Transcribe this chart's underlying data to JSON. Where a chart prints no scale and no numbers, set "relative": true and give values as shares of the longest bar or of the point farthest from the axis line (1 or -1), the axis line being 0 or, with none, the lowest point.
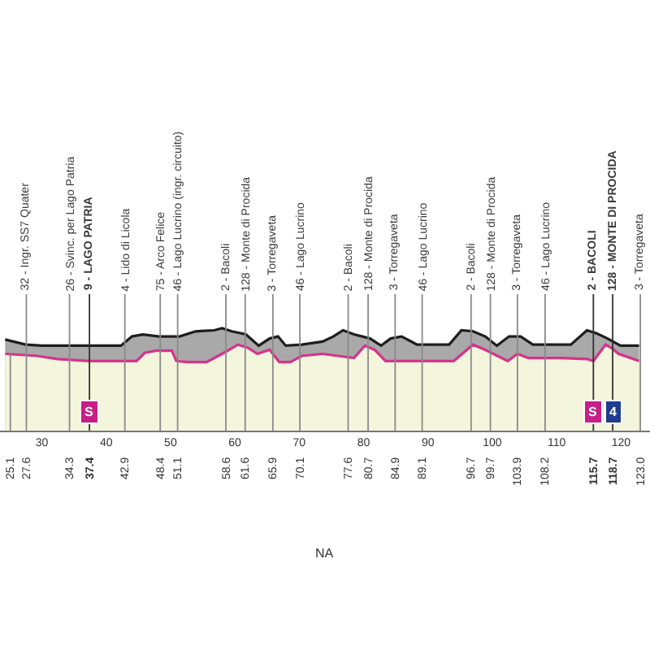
{
  "chart_data": {
    "type": "area",
    "relative": true,
    "xlim": [
      23.5,
      124.5
    ],
    "xticks": [
      30,
      40,
      50,
      60,
      70,
      80,
      90,
      100,
      110,
      120
    ],
    "tick_labels": "x",
    "x2lim": [
      23.5,
      124.5
    ],
    "x2ticks": [
      25.1,
      27.6,
      34.3,
      37.4,
      42.9,
      48.4,
      51.1,
      58.6,
      61.6,
      65.9,
      70.1,
      77.6,
      80.7,
      84.9,
      89.1,
      96.7,
      99.7,
      103.9,
      108.2,
      115.7,
      118.7,
      {
        "value": 123.0,
        "label": "123.0"
      }
    ],
    "series": [
      {
        "color": "#1e1e1e",
        "x": [
          24.3,
          27.5,
          30.0,
          34.9,
          37.4,
          42.3,
          44.0,
          45.7,
          48.2,
          51.4,
          53.9,
          56.8,
          58.0,
          59.5,
          61.7,
          63.7,
          65.4,
          66.7,
          67.9,
          70.4,
          73.6,
          75.3,
          76.8,
          78.5,
          81.0,
          82.7,
          84.2,
          85.9,
          88.3,
          93.3,
          95.2,
          97.0,
          98.9,
          100.7,
          102.6,
          104.4,
          106.3,
          112.2,
          114.7,
          116.2,
          117.9,
          119.9,
          122.8
        ],
        "values": [
          0.89,
          0.84,
          0.83,
          0.83,
          0.83,
          0.83,
          0.92,
          0.94,
          0.92,
          0.92,
          0.97,
          0.98,
          1.0,
          0.97,
          0.94,
          0.83,
          0.9,
          0.92,
          0.83,
          0.84,
          0.87,
          0.92,
          0.98,
          0.94,
          0.9,
          0.83,
          0.9,
          0.92,
          0.84,
          0.84,
          0.98,
          0.97,
          0.92,
          0.83,
          0.92,
          0.92,
          0.84,
          0.84,
          0.98,
          0.95,
          0.9,
          0.83,
          0.83
        ]
      },
      {
        "color": "#d6338a",
        "x": [
          24.3,
          29.2,
          32.4,
          37.4,
          44.7,
          46.0,
          47.7,
          50.2,
          50.9,
          52.6,
          55.6,
          58.0,
          60.5,
          62.0,
          63.5,
          65.4,
          66.9,
          68.6,
          70.4,
          73.6,
          78.5,
          80.2,
          81.7,
          83.4,
          94.0,
          97.0,
          98.9,
          102.4,
          103.9,
          105.6,
          110.5,
          114.7,
          115.7,
          117.6,
          118.7,
          119.6,
          122.8
        ],
        "values": [
          0.75,
          0.73,
          0.7,
          0.68,
          0.68,
          0.76,
          0.78,
          0.78,
          0.68,
          0.67,
          0.67,
          0.75,
          0.84,
          0.81,
          0.75,
          0.79,
          0.67,
          0.67,
          0.73,
          0.75,
          0.71,
          0.83,
          0.79,
          0.68,
          0.68,
          0.84,
          0.79,
          0.68,
          0.75,
          0.71,
          0.71,
          0.7,
          0.68,
          0.84,
          0.8,
          0.75,
          0.68
        ]
      }
    ],
    "ref_lines": [
      {
        "axis": "x",
        "value": 25.1
      },
      {
        "axis": "x",
        "value": 27.6,
        "label": "32 - Ingr. SS7 Quater"
      },
      {
        "axis": "x",
        "value": 34.3,
        "label": "26 - Svinc. per Lago Patria"
      },
      {
        "axis": "x",
        "value": 37.4,
        "label": "9 - LAGO PATRIA",
        "color": "#333333"
      },
      {
        "axis": "x",
        "value": 42.9,
        "label": "4 - Lido di Licola"
      },
      {
        "axis": "x",
        "value": 48.4,
        "label": "75 - Arco Felice"
      },
      {
        "axis": "x",
        "value": 51.1,
        "label": "46 - Lago Lucrino (ingr. circuito)"
      },
      {
        "axis": "x",
        "value": 58.6,
        "label": "2 - Bacoli"
      },
      {
        "axis": "x",
        "value": 61.6,
        "label": "128 - Monte di Procida"
      },
      {
        "axis": "x",
        "value": 65.9,
        "label": "3 - Torregaveta"
      },
      {
        "axis": "x",
        "value": 70.1,
        "label": "46 - Lago Lucrino"
      },
      {
        "axis": "x",
        "value": 77.6,
        "label": "2 - Bacoli"
      },
      {
        "axis": "x",
        "value": 80.7,
        "label": "128 - Monte di Procida"
      },
      {
        "axis": "x",
        "value": 84.9,
        "label": "3 - Torregaveta"
      },
      {
        "axis": "x",
        "value": 89.1,
        "label": "46 - Lago Lucrino"
      },
      {
        "axis": "x",
        "value": 96.7,
        "label": "2 - Bacoli"
      },
      {
        "axis": "x",
        "value": 99.7,
        "label": "128 - Monte di Procida"
      },
      {
        "axis": "x",
        "value": 103.9,
        "label": "3 - Torregaveta"
      },
      {
        "axis": "x",
        "value": 108.2,
        "label": "46 - Lago Lucrino"
      },
      {
        "axis": "x",
        "value": 115.7,
        "label": "2 - BACOLI",
        "color": "#333333"
      },
      {
        "axis": "x",
        "value": 118.7,
        "label": "128 - MONTE DI PROCIDA",
        "color": "#333333"
      },
      {
        "axis": "x",
        "value": 123.0,
        "label": "3 - Torregaveta"
      }
    ],
    "annotations": [
      {
        "text": "S",
        "x": 37.4,
        "y": 0.19
      },
      {
        "text": "S",
        "x": 115.7,
        "y": 0.19
      },
      {
        "text": "4",
        "x": 118.7,
        "y": 0.19
      },
      "NA"
    ]
  }
}
